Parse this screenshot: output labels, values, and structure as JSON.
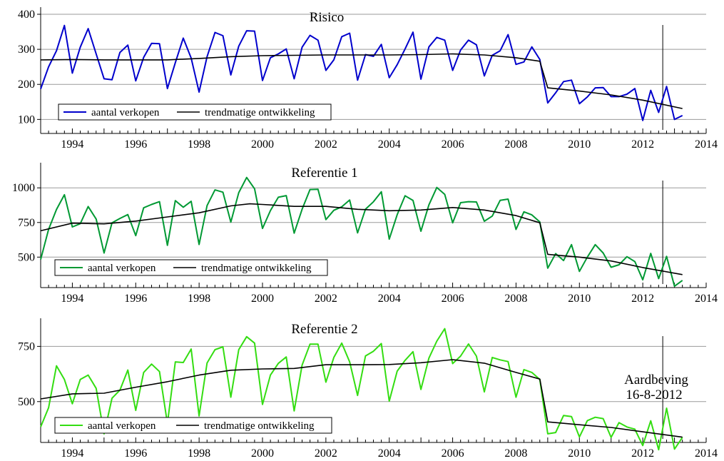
{
  "chart_data": [
    {
      "type": "line",
      "title": "Risico",
      "xlim": [
        1993.0,
        2014.0
      ],
      "ylim": [
        60,
        400
      ],
      "yticks": [
        100,
        200,
        300,
        400
      ],
      "xticks": [
        1994,
        1996,
        1998,
        2000,
        2002,
        2004,
        2006,
        2008,
        2010,
        2012,
        2014
      ],
      "grid": true,
      "legend": "bottom-left",
      "event_x": 2012.63,
      "series": [
        {
          "name": "aantal verkopen",
          "color": "#0000cc",
          "x": [
            1993.0,
            1993.25,
            1993.5,
            1993.75,
            1994.0,
            1994.25,
            1994.5,
            1994.75,
            1995.0,
            1995.25,
            1995.5,
            1995.75,
            1996.0,
            1996.25,
            1996.5,
            1996.75,
            1997.0,
            1997.25,
            1997.5,
            1997.75,
            1998.0,
            1998.25,
            1998.5,
            1998.75,
            1999.0,
            1999.25,
            1999.5,
            1999.75,
            2000.0,
            2000.25,
            2000.5,
            2000.75,
            2001.0,
            2001.25,
            2001.5,
            2001.75,
            2002.0,
            2002.25,
            2002.5,
            2002.75,
            2003.0,
            2003.25,
            2003.5,
            2003.75,
            2004.0,
            2004.25,
            2004.5,
            2004.75,
            2005.0,
            2005.25,
            2005.5,
            2005.75,
            2006.0,
            2006.25,
            2006.5,
            2006.75,
            2007.0,
            2007.25,
            2007.5,
            2007.75,
            2008.0,
            2008.25,
            2008.5,
            2008.75,
            2009.0,
            2009.25,
            2009.5,
            2009.75,
            2010.0,
            2010.25,
            2010.5,
            2010.75,
            2011.0,
            2011.25,
            2011.5,
            2011.75,
            2012.0,
            2012.25,
            2012.5,
            2012.75,
            2013.0,
            2013.25
          ],
          "y": [
            187,
            250,
            296,
            368,
            232,
            306,
            359,
            287,
            216,
            213,
            291,
            312,
            210,
            277,
            317,
            316,
            188,
            262,
            332,
            275,
            178,
            279,
            348,
            339,
            227,
            309,
            353,
            352,
            211,
            276,
            287,
            301,
            216,
            306,
            340,
            326,
            240,
            270,
            336,
            346,
            212,
            285,
            280,
            314,
            219,
            256,
            301,
            349,
            215,
            307,
            334,
            326,
            240,
            298,
            326,
            313,
            224,
            283,
            296,
            342,
            257,
            264,
            307,
            271,
            147,
            176,
            208,
            212,
            145,
            164,
            190,
            191,
            165,
            165,
            172,
            188,
            97,
            183,
            120,
            194,
            100,
            111
          ]
        },
        {
          "name": "trendmatige ontwikkeling",
          "color": "#000000",
          "x": [
            1993.0,
            1994.0,
            1995.0,
            1996.0,
            1997.0,
            1998.0,
            1999.0,
            2000.0,
            2001.0,
            2002.0,
            2003.0,
            2004.0,
            2005.0,
            2006.0,
            2007.0,
            2008.0,
            2008.75,
            2009.0,
            2010.0,
            2011.0,
            2012.0,
            2013.25
          ],
          "y": [
            270,
            271,
            270,
            270,
            270,
            274,
            279,
            282,
            283,
            284,
            284,
            284,
            285,
            287,
            284,
            276,
            266,
            190,
            181,
            170,
            155,
            131
          ]
        }
      ]
    },
    {
      "type": "line",
      "title": "Referentie 1",
      "xlim": [
        1993.0,
        2014.0
      ],
      "ylim": [
        280,
        1130
      ],
      "yticks": [
        500,
        750,
        1000
      ],
      "xticks": [
        1994,
        1996,
        1998,
        2000,
        2002,
        2004,
        2006,
        2008,
        2010,
        2012,
        2014
      ],
      "grid": true,
      "legend": "bottom-left",
      "event_x": 2012.63,
      "series": [
        {
          "name": "aantal verkopen",
          "color": "#009933",
          "x": [
            1993.0,
            1993.25,
            1993.5,
            1993.75,
            1994.0,
            1994.25,
            1994.5,
            1994.75,
            1995.0,
            1995.25,
            1995.5,
            1995.75,
            1996.0,
            1996.25,
            1996.5,
            1996.75,
            1997.0,
            1997.25,
            1997.5,
            1997.75,
            1998.0,
            1998.25,
            1998.5,
            1998.75,
            1999.0,
            1999.25,
            1999.5,
            1999.75,
            2000.0,
            2000.25,
            2000.5,
            2000.75,
            2001.0,
            2001.25,
            2001.5,
            2001.75,
            2002.0,
            2002.25,
            2002.5,
            2002.75,
            2003.0,
            2003.25,
            2003.5,
            2003.75,
            2004.0,
            2004.25,
            2004.5,
            2004.75,
            2005.0,
            2005.25,
            2005.5,
            2005.75,
            2006.0,
            2006.25,
            2006.5,
            2006.75,
            2007.0,
            2007.25,
            2007.5,
            2007.75,
            2008.0,
            2008.25,
            2008.5,
            2008.75,
            2009.0,
            2009.25,
            2009.5,
            2009.75,
            2010.0,
            2010.25,
            2010.5,
            2010.75,
            2011.0,
            2011.25,
            2011.5,
            2011.75,
            2012.0,
            2012.25,
            2012.5,
            2012.75,
            2013.0,
            2013.25
          ],
          "y": [
            483,
            700,
            844,
            950,
            718,
            741,
            865,
            775,
            530,
            748,
            779,
            807,
            655,
            856,
            880,
            900,
            585,
            908,
            860,
            903,
            591,
            872,
            985,
            969,
            753,
            965,
            1075,
            993,
            707,
            836,
            932,
            944,
            673,
            845,
            988,
            990,
            771,
            838,
            863,
            912,
            675,
            846,
            899,
            972,
            630,
            806,
            943,
            909,
            687,
            877,
            1003,
            953,
            748,
            893,
            900,
            898,
            759,
            796,
            910,
            919,
            700,
            827,
            805,
            754,
            420,
            525,
            475,
            590,
            397,
            500,
            590,
            530,
            427,
            445,
            503,
            468,
            336,
            527,
            345,
            505,
            290,
            332
          ]
        },
        {
          "name": "trendmatige ontwikkeling",
          "color": "#000000",
          "x": [
            1993.0,
            1994.0,
            1995.0,
            1996.0,
            1997.0,
            1998.0,
            1999.0,
            1999.6,
            2000.0,
            2001.0,
            2002.0,
            2003.0,
            2004.0,
            2005.0,
            2006.0,
            2007.0,
            2008.0,
            2008.75,
            2009.0,
            2010.0,
            2011.0,
            2012.0,
            2013.25
          ],
          "y": [
            690,
            745,
            740,
            760,
            790,
            820,
            870,
            885,
            880,
            866,
            866,
            845,
            835,
            840,
            858,
            840,
            800,
            748,
            520,
            500,
            472,
            425,
            374
          ]
        }
      ]
    },
    {
      "type": "line",
      "title": "Referentie 2",
      "xlim": [
        1993.0,
        2014.0
      ],
      "ylim": [
        315,
        845
      ],
      "yticks": [
        500,
        750
      ],
      "xticks": [
        1994,
        1996,
        1998,
        2000,
        2002,
        2004,
        2006,
        2008,
        2010,
        2012,
        2014
      ],
      "grid": true,
      "legend": "bottom-left",
      "event_x": 2012.63,
      "annotation": [
        "Aardbeving",
        "16-8-2012"
      ],
      "series": [
        {
          "name": "aantal verkopen",
          "color": "#33dd11",
          "x": [
            1993.0,
            1993.25,
            1993.5,
            1993.75,
            1994.0,
            1994.25,
            1994.5,
            1994.75,
            1995.0,
            1995.25,
            1995.5,
            1995.75,
            1996.0,
            1996.25,
            1996.5,
            1996.75,
            1997.0,
            1997.25,
            1997.5,
            1997.75,
            1998.0,
            1998.25,
            1998.5,
            1998.75,
            1999.0,
            1999.25,
            1999.5,
            1999.75,
            2000.0,
            2000.25,
            2000.5,
            2000.75,
            2001.0,
            2001.25,
            2001.5,
            2001.75,
            2002.0,
            2002.25,
            2002.5,
            2002.75,
            2003.0,
            2003.25,
            2003.5,
            2003.75,
            2004.0,
            2004.25,
            2004.5,
            2004.75,
            2005.0,
            2005.25,
            2005.5,
            2005.75,
            2006.0,
            2006.25,
            2006.5,
            2006.75,
            2007.0,
            2007.25,
            2007.5,
            2007.75,
            2008.0,
            2008.25,
            2008.5,
            2008.75,
            2009.0,
            2009.25,
            2009.5,
            2009.75,
            2010.0,
            2010.25,
            2010.5,
            2010.75,
            2011.0,
            2011.25,
            2011.5,
            2011.75,
            2012.0,
            2012.25,
            2012.5,
            2012.75,
            2013.0,
            2013.25
          ],
          "y": [
            385,
            472,
            662,
            600,
            490,
            600,
            620,
            560,
            354,
            515,
            552,
            643,
            460,
            632,
            670,
            636,
            401,
            680,
            677,
            738,
            435,
            675,
            735,
            748,
            520,
            735,
            794,
            765,
            487,
            620,
            673,
            702,
            458,
            665,
            760,
            760,
            588,
            700,
            765,
            680,
            528,
            707,
            728,
            763,
            502,
            638,
            687,
            726,
            555,
            697,
            774,
            830,
            672,
            706,
            761,
            706,
            544,
            700,
            689,
            681,
            520,
            645,
            632,
            600,
            354,
            360,
            437,
            432,
            340,
            414,
            429,
            423,
            338,
            405,
            385,
            375,
            301,
            413,
            282,
            470,
            285,
            338
          ]
        },
        {
          "name": "trendmatige ontwikkeling",
          "color": "#000000",
          "x": [
            1993.0,
            1994.0,
            1995.0,
            1996.0,
            1997.0,
            1998.0,
            1999.0,
            2000.0,
            2001.0,
            2002.0,
            2003.0,
            2004.0,
            2005.0,
            2006.0,
            2007.0,
            2008.0,
            2008.75,
            2009.0,
            2010.0,
            2011.0,
            2012.0,
            2013.25
          ],
          "y": [
            512,
            535,
            538,
            565,
            590,
            620,
            642,
            648,
            650,
            667,
            667,
            668,
            676,
            690,
            674,
            632,
            602,
            408,
            395,
            383,
            363,
            339
          ]
        }
      ]
    }
  ]
}
